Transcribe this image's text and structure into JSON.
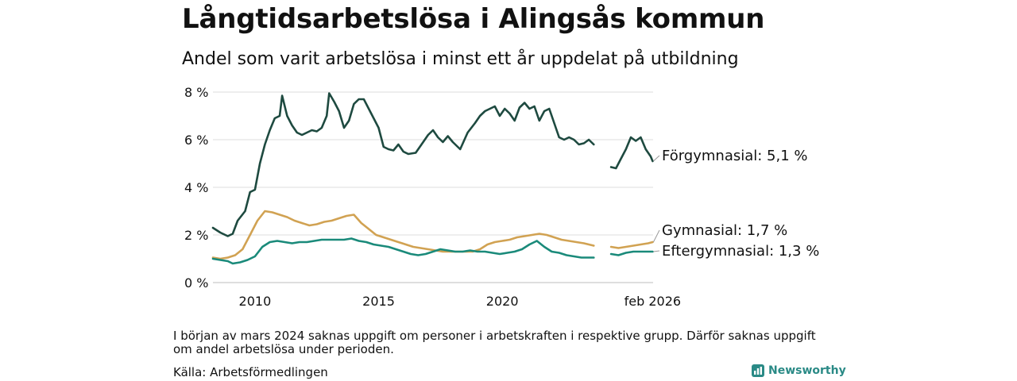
{
  "title": "Långtidsarbetslösa i Alingsås kommun",
  "subtitle": "Andel som varit arbetslösa i minst ett år uppdelat på utbildning",
  "footnote": "I början av mars 2024 saknas uppgift om personer i arbetskraften i respektive grupp. Därför saknas uppgift om andel arbetslösa under perioden.",
  "source": "Källa: Arbetsförmedlingen",
  "brand": {
    "name": "Newsworthy",
    "icon": "bar-chart-icon",
    "color": "#2a8a86"
  },
  "chart_data": {
    "type": "line",
    "title": "Långtidsarbetslösa i Alingsås kommun",
    "xlabel": "",
    "ylabel": "",
    "xlim": [
      2008.3,
      2026.1
    ],
    "ylim": [
      0,
      8
    ],
    "grid": true,
    "y_ticks": [
      0,
      2,
      4,
      6,
      8
    ],
    "y_tick_labels": [
      "0 %",
      "2 %",
      "4 %",
      "6 %",
      "8 %"
    ],
    "x_ticks": [
      2010,
      2015,
      2020,
      2026.08
    ],
    "x_tick_labels": [
      "2010",
      "2015",
      "2020",
      "feb 2026"
    ],
    "gap": [
      2023.75,
      2024.4
    ],
    "series": [
      {
        "name": "Förgymnasial",
        "end_label": "Förgymnasial: 5,1 %",
        "color": "#1e4a40",
        "points": [
          [
            2008.3,
            2.3
          ],
          [
            2008.6,
            2.1
          ],
          [
            2008.9,
            1.95
          ],
          [
            2009.1,
            2.05
          ],
          [
            2009.3,
            2.6
          ],
          [
            2009.6,
            3.0
          ],
          [
            2009.8,
            3.8
          ],
          [
            2010.0,
            3.9
          ],
          [
            2010.2,
            5.0
          ],
          [
            2010.4,
            5.8
          ],
          [
            2010.6,
            6.4
          ],
          [
            2010.8,
            6.9
          ],
          [
            2011.0,
            7.0
          ],
          [
            2011.1,
            7.85
          ],
          [
            2011.3,
            7.0
          ],
          [
            2011.5,
            6.6
          ],
          [
            2011.7,
            6.3
          ],
          [
            2011.9,
            6.2
          ],
          [
            2012.1,
            6.3
          ],
          [
            2012.3,
            6.4
          ],
          [
            2012.5,
            6.35
          ],
          [
            2012.7,
            6.5
          ],
          [
            2012.9,
            7.0
          ],
          [
            2013.0,
            7.95
          ],
          [
            2013.2,
            7.6
          ],
          [
            2013.4,
            7.2
          ],
          [
            2013.6,
            6.5
          ],
          [
            2013.8,
            6.8
          ],
          [
            2014.0,
            7.5
          ],
          [
            2014.2,
            7.7
          ],
          [
            2014.4,
            7.7
          ],
          [
            2014.6,
            7.3
          ],
          [
            2014.8,
            6.9
          ],
          [
            2015.0,
            6.5
          ],
          [
            2015.2,
            5.7
          ],
          [
            2015.4,
            5.6
          ],
          [
            2015.6,
            5.55
          ],
          [
            2015.8,
            5.8
          ],
          [
            2016.0,
            5.5
          ],
          [
            2016.2,
            5.4
          ],
          [
            2016.5,
            5.45
          ],
          [
            2016.8,
            5.9
          ],
          [
            2017.0,
            6.2
          ],
          [
            2017.2,
            6.4
          ],
          [
            2017.4,
            6.1
          ],
          [
            2017.6,
            5.9
          ],
          [
            2017.8,
            6.15
          ],
          [
            2018.0,
            5.9
          ],
          [
            2018.3,
            5.6
          ],
          [
            2018.6,
            6.3
          ],
          [
            2018.9,
            6.7
          ],
          [
            2019.1,
            7.0
          ],
          [
            2019.3,
            7.2
          ],
          [
            2019.5,
            7.3
          ],
          [
            2019.7,
            7.4
          ],
          [
            2019.9,
            7.0
          ],
          [
            2020.1,
            7.3
          ],
          [
            2020.3,
            7.1
          ],
          [
            2020.5,
            6.8
          ],
          [
            2020.7,
            7.35
          ],
          [
            2020.9,
            7.55
          ],
          [
            2021.1,
            7.3
          ],
          [
            2021.3,
            7.4
          ],
          [
            2021.5,
            6.8
          ],
          [
            2021.7,
            7.2
          ],
          [
            2021.9,
            7.3
          ],
          [
            2022.1,
            6.7
          ],
          [
            2022.3,
            6.1
          ],
          [
            2022.5,
            6.0
          ],
          [
            2022.7,
            6.1
          ],
          [
            2022.9,
            6.0
          ],
          [
            2023.1,
            5.8
          ],
          [
            2023.3,
            5.85
          ],
          [
            2023.5,
            6.0
          ],
          [
            2023.7,
            5.8
          ],
          [
            2024.4,
            4.85
          ],
          [
            2024.6,
            4.8
          ],
          [
            2024.8,
            5.2
          ],
          [
            2025.0,
            5.6
          ],
          [
            2025.2,
            6.1
          ],
          [
            2025.4,
            5.95
          ],
          [
            2025.6,
            6.1
          ],
          [
            2025.8,
            5.6
          ],
          [
            2026.0,
            5.3
          ],
          [
            2026.08,
            5.1
          ]
        ]
      },
      {
        "name": "Gymnasial",
        "end_label": "Gymnasial: 1,7 %",
        "color": "#d1a252",
        "points": [
          [
            2008.3,
            1.05
          ],
          [
            2008.6,
            1.0
          ],
          [
            2008.9,
            1.05
          ],
          [
            2009.2,
            1.15
          ],
          [
            2009.5,
            1.4
          ],
          [
            2009.8,
            2.0
          ],
          [
            2010.1,
            2.6
          ],
          [
            2010.4,
            3.0
          ],
          [
            2010.7,
            2.95
          ],
          [
            2011.0,
            2.85
          ],
          [
            2011.3,
            2.75
          ],
          [
            2011.6,
            2.6
          ],
          [
            2011.9,
            2.5
          ],
          [
            2012.2,
            2.4
          ],
          [
            2012.5,
            2.45
          ],
          [
            2012.8,
            2.55
          ],
          [
            2013.1,
            2.6
          ],
          [
            2013.4,
            2.7
          ],
          [
            2013.7,
            2.8
          ],
          [
            2014.0,
            2.85
          ],
          [
            2014.3,
            2.5
          ],
          [
            2014.6,
            2.25
          ],
          [
            2014.9,
            2.0
          ],
          [
            2015.2,
            1.9
          ],
          [
            2015.5,
            1.8
          ],
          [
            2015.8,
            1.7
          ],
          [
            2016.1,
            1.6
          ],
          [
            2016.4,
            1.5
          ],
          [
            2016.7,
            1.45
          ],
          [
            2017.0,
            1.4
          ],
          [
            2017.3,
            1.35
          ],
          [
            2017.6,
            1.3
          ],
          [
            2017.9,
            1.3
          ],
          [
            2018.2,
            1.3
          ],
          [
            2018.5,
            1.3
          ],
          [
            2018.8,
            1.3
          ],
          [
            2019.1,
            1.4
          ],
          [
            2019.4,
            1.6
          ],
          [
            2019.7,
            1.7
          ],
          [
            2020.0,
            1.75
          ],
          [
            2020.3,
            1.8
          ],
          [
            2020.6,
            1.9
          ],
          [
            2020.9,
            1.95
          ],
          [
            2021.2,
            2.0
          ],
          [
            2021.5,
            2.05
          ],
          [
            2021.8,
            2.0
          ],
          [
            2022.1,
            1.9
          ],
          [
            2022.4,
            1.8
          ],
          [
            2022.7,
            1.75
          ],
          [
            2023.0,
            1.7
          ],
          [
            2023.3,
            1.65
          ],
          [
            2023.7,
            1.55
          ],
          [
            2024.4,
            1.5
          ],
          [
            2024.7,
            1.45
          ],
          [
            2025.0,
            1.5
          ],
          [
            2025.3,
            1.55
          ],
          [
            2025.6,
            1.6
          ],
          [
            2025.9,
            1.65
          ],
          [
            2026.08,
            1.7
          ]
        ]
      },
      {
        "name": "Eftergymnasial",
        "end_label": "Eftergymnasial: 1,3 %",
        "color": "#1a8a7a",
        "points": [
          [
            2008.3,
            1.0
          ],
          [
            2008.6,
            0.95
          ],
          [
            2008.9,
            0.9
          ],
          [
            2009.1,
            0.8
          ],
          [
            2009.4,
            0.85
          ],
          [
            2009.7,
            0.95
          ],
          [
            2010.0,
            1.1
          ],
          [
            2010.3,
            1.5
          ],
          [
            2010.6,
            1.7
          ],
          [
            2010.9,
            1.75
          ],
          [
            2011.2,
            1.7
          ],
          [
            2011.5,
            1.65
          ],
          [
            2011.8,
            1.7
          ],
          [
            2012.1,
            1.7
          ],
          [
            2012.4,
            1.75
          ],
          [
            2012.7,
            1.8
          ],
          [
            2013.0,
            1.8
          ],
          [
            2013.3,
            1.8
          ],
          [
            2013.6,
            1.8
          ],
          [
            2013.9,
            1.85
          ],
          [
            2014.2,
            1.75
          ],
          [
            2014.5,
            1.7
          ],
          [
            2014.8,
            1.6
          ],
          [
            2015.1,
            1.55
          ],
          [
            2015.4,
            1.5
          ],
          [
            2015.7,
            1.4
          ],
          [
            2016.0,
            1.3
          ],
          [
            2016.3,
            1.2
          ],
          [
            2016.6,
            1.15
          ],
          [
            2016.9,
            1.2
          ],
          [
            2017.2,
            1.3
          ],
          [
            2017.5,
            1.4
          ],
          [
            2017.8,
            1.35
          ],
          [
            2018.1,
            1.3
          ],
          [
            2018.4,
            1.3
          ],
          [
            2018.7,
            1.35
          ],
          [
            2019.0,
            1.3
          ],
          [
            2019.3,
            1.3
          ],
          [
            2019.6,
            1.25
          ],
          [
            2019.9,
            1.2
          ],
          [
            2020.2,
            1.25
          ],
          [
            2020.5,
            1.3
          ],
          [
            2020.8,
            1.4
          ],
          [
            2021.1,
            1.6
          ],
          [
            2021.4,
            1.75
          ],
          [
            2021.7,
            1.5
          ],
          [
            2022.0,
            1.3
          ],
          [
            2022.3,
            1.25
          ],
          [
            2022.6,
            1.15
          ],
          [
            2022.9,
            1.1
          ],
          [
            2023.2,
            1.05
          ],
          [
            2023.5,
            1.05
          ],
          [
            2023.7,
            1.05
          ],
          [
            2024.4,
            1.2
          ],
          [
            2024.7,
            1.15
          ],
          [
            2025.0,
            1.25
          ],
          [
            2025.3,
            1.3
          ],
          [
            2025.6,
            1.3
          ],
          [
            2025.9,
            1.3
          ],
          [
            2026.08,
            1.3
          ]
        ]
      }
    ]
  }
}
